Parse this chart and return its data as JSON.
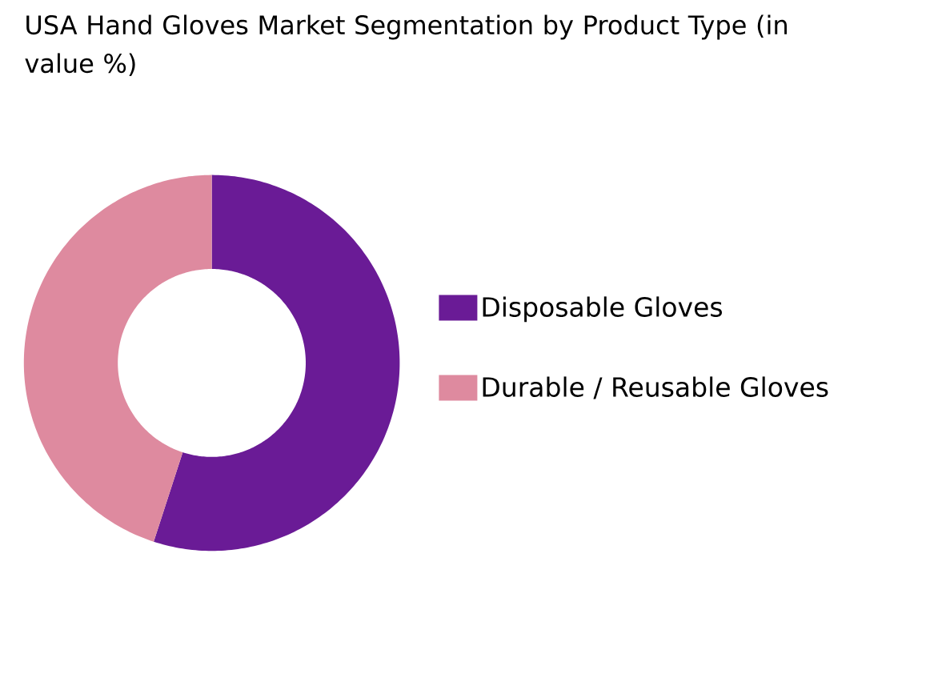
{
  "chart_data": {
    "type": "donut",
    "title": "USA Hand Gloves Market Segmentation by Product Type (in value %)",
    "categories": [
      "Disposable Gloves",
      "Durable / Reusable Gloves"
    ],
    "values": [
      55,
      45
    ],
    "colors": [
      "#6a1b96",
      "#de8a9f"
    ],
    "legend": "right"
  }
}
